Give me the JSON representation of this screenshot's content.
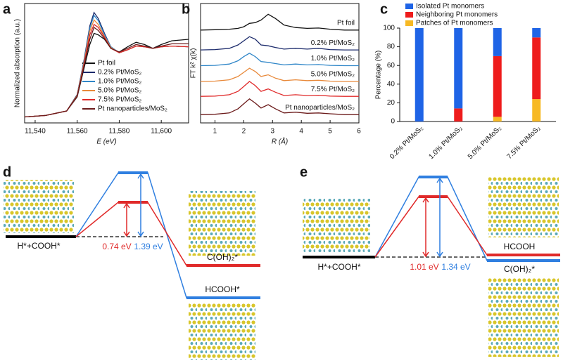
{
  "panel_labels": [
    "a",
    "b",
    "c",
    "d",
    "e"
  ],
  "chart_data": [
    {
      "type": "line",
      "xlabel": "E (eV)",
      "ylabel": "Normalized absorption (a.u.)",
      "legend": "lower-right",
      "x": [
        11535,
        11545,
        11555,
        11560,
        11563,
        11566,
        11568,
        11570,
        11573,
        11576,
        11580,
        11584,
        11588,
        11592,
        11596,
        11600,
        11605,
        11613
      ],
      "xlim": [
        11535,
        11613
      ],
      "ylim": [
        0,
        1.6
      ],
      "xticks": [
        {
          "value": 11540,
          "label": "11,540"
        },
        {
          "value": 11560,
          "label": "11,560"
        },
        {
          "value": 11580,
          "label": "11,580"
        },
        {
          "value": 11600,
          "label": "11,600"
        }
      ],
      "series": [
        {
          "name": "Pt foil",
          "color": "#111111",
          "values": [
            0.08,
            0.1,
            0.16,
            0.35,
            0.7,
            1.05,
            1.2,
            1.18,
            1.12,
            1.0,
            0.95,
            1.02,
            1.08,
            1.05,
            1.0,
            1.05,
            1.1,
            1.12
          ]
        },
        {
          "name": "0.2% Pt/MoS₂",
          "color": "#1b2a6b",
          "values": [
            0.08,
            0.1,
            0.16,
            0.38,
            0.8,
            1.3,
            1.48,
            1.4,
            1.2,
            1.02,
            0.94,
            0.98,
            1.03,
            1.02,
            1.0,
            1.02,
            1.03,
            1.02
          ]
        },
        {
          "name": "1.0% Pt/MoS₂",
          "color": "#2f86c8",
          "values": [
            0.08,
            0.1,
            0.16,
            0.37,
            0.78,
            1.27,
            1.44,
            1.37,
            1.18,
            1.02,
            0.94,
            0.98,
            1.03,
            1.02,
            1.0,
            1.02,
            1.03,
            1.02
          ]
        },
        {
          "name": "5.0% Pt/MoS₂",
          "color": "#e8893a",
          "values": [
            0.08,
            0.1,
            0.16,
            0.37,
            0.77,
            1.23,
            1.38,
            1.32,
            1.16,
            1.01,
            0.94,
            0.98,
            1.03,
            1.02,
            1.0,
            1.02,
            1.03,
            1.02
          ]
        },
        {
          "name": "7.5% Pt/MoS₂",
          "color": "#e02a2a",
          "values": [
            0.08,
            0.1,
            0.16,
            0.36,
            0.75,
            1.18,
            1.32,
            1.28,
            1.15,
            1.0,
            0.94,
            0.98,
            1.03,
            1.02,
            1.0,
            1.02,
            1.03,
            1.02
          ]
        },
        {
          "name": "Pt nanoparticles/MoS₂",
          "color": "#6b1a1a",
          "values": [
            0.08,
            0.1,
            0.16,
            0.36,
            0.73,
            1.12,
            1.28,
            1.24,
            1.13,
            1.0,
            0.95,
            1.0,
            1.05,
            1.03,
            1.0,
            1.03,
            1.06,
            1.06
          ]
        }
      ]
    },
    {
      "type": "line",
      "xlabel": "R (Å)",
      "ylabel": "FT k² χ(k)",
      "legend": "inline",
      "x": [
        0.5,
        1,
        1.5,
        1.8,
        2.0,
        2.2,
        2.4,
        2.6,
        2.85,
        3.1,
        3.4,
        3.8,
        4.2,
        4.6,
        5,
        5.5,
        6
      ],
      "xlim": [
        0.5,
        6
      ],
      "ylim": [
        0,
        7.2
      ],
      "xticks": [
        1,
        2,
        3,
        4,
        5,
        6
      ],
      "series": [
        {
          "name": "Pt foil",
          "color": "#111111",
          "values": [
            5.6,
            5.62,
            5.65,
            5.7,
            5.8,
            6.0,
            6.05,
            6.2,
            6.55,
            6.3,
            5.9,
            5.75,
            5.7,
            5.72,
            5.65,
            5.6,
            5.6
          ]
        },
        {
          "name": "0.2% Pt/MoS₂",
          "color": "#1b2a6b",
          "values": [
            4.4,
            4.42,
            4.5,
            4.7,
            4.95,
            5.2,
            5.05,
            4.7,
            4.65,
            4.55,
            4.45,
            4.5,
            4.45,
            4.5,
            4.42,
            4.4,
            4.4
          ]
        },
        {
          "name": "1.0% Pt/MoS₂",
          "color": "#2f86c8",
          "values": [
            3.45,
            3.47,
            3.55,
            3.75,
            4.0,
            4.2,
            4.0,
            3.7,
            3.65,
            3.58,
            3.5,
            3.55,
            3.5,
            3.52,
            3.47,
            3.45,
            3.45
          ]
        },
        {
          "name": "5.0% Pt/MoS₂",
          "color": "#e8893a",
          "values": [
            2.5,
            2.52,
            2.6,
            2.8,
            3.05,
            3.3,
            3.1,
            2.8,
            2.9,
            2.7,
            2.55,
            2.6,
            2.55,
            2.57,
            2.52,
            2.5,
            2.5
          ]
        },
        {
          "name": "7.5% Pt/MoS₂",
          "color": "#e02a2a",
          "values": [
            1.6,
            1.62,
            1.7,
            1.9,
            2.2,
            2.5,
            2.25,
            1.9,
            2.05,
            1.85,
            1.65,
            1.7,
            1.65,
            1.67,
            1.62,
            1.6,
            1.6
          ]
        },
        {
          "name": "Pt nanoparticles/MoS₂",
          "color": "#6b1a1a",
          "values": [
            0.5,
            0.52,
            0.6,
            0.85,
            1.15,
            1.45,
            1.2,
            0.9,
            1.1,
            0.85,
            0.6,
            0.65,
            0.58,
            0.6,
            0.55,
            0.5,
            0.5
          ]
        }
      ]
    },
    {
      "type": "stacked-bar",
      "ylabel": "Percentage (%)",
      "legend": "top",
      "categories": [
        "0.2% Pt/MoS₂",
        "1.0% Pt/MoS₂",
        "5.0% Pt/MoS₂",
        "7.5% Pt/MoS₂"
      ],
      "ylim": [
        0,
        100
      ],
      "yticks": [
        0,
        20,
        40,
        60,
        80,
        100
      ],
      "series": [
        {
          "name": "Isolated Pt monomers",
          "color": "#1f64e6",
          "values": [
            100,
            86,
            30,
            10
          ]
        },
        {
          "name": "Neighboring Pt monomers",
          "color": "#ee1c1c",
          "values": [
            0,
            14,
            65,
            66
          ]
        },
        {
          "name": "Patches of Pt monomers",
          "color": "#f7b924",
          "values": [
            0,
            0,
            5,
            24
          ]
        }
      ]
    }
  ],
  "diagram_d": {
    "initial": "H*+COOH*",
    "barriers": [
      "0.74 eV",
      "1.39 eV"
    ],
    "products": [
      "C(OH)₂*",
      "HCOOH*"
    ]
  },
  "diagram_e": {
    "initial": "H*+COOH*",
    "barriers": [
      "1.01 eV",
      "1.34 eV"
    ],
    "products": [
      "HCOOH",
      "C(OH)₂*"
    ]
  }
}
